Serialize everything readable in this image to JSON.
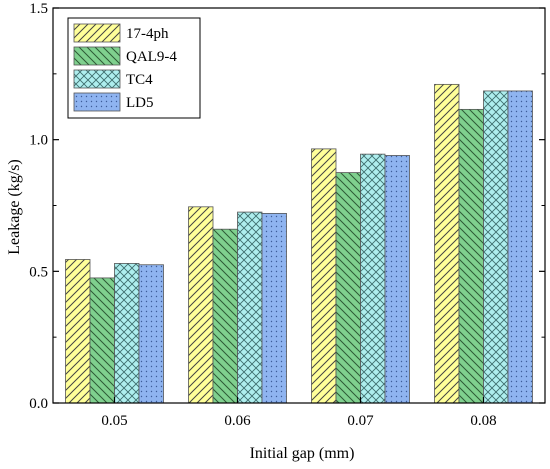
{
  "chart_data": {
    "type": "bar",
    "xlabel": "Initial gap (mm)",
    "ylabel": "Leakage (kg/s)",
    "categories": [
      "0.05",
      "0.06",
      "0.07",
      "0.08"
    ],
    "ylim": [
      0.0,
      1.5
    ],
    "yticks": [
      0.0,
      0.5,
      1.0,
      1.5
    ],
    "ytick_labels": [
      "0.0",
      "0.5",
      "1.0",
      "1.5"
    ],
    "legend_position": "top-left",
    "grid": false,
    "series": [
      {
        "name": "17-4ph",
        "values": [
          0.545,
          0.745,
          0.965,
          1.21
        ],
        "fill": "#FFFF99",
        "stroke": "#444444",
        "pattern": "diagonal-up"
      },
      {
        "name": "QAL9-4",
        "values": [
          0.475,
          0.66,
          0.875,
          1.115
        ],
        "fill": "#7FD08E",
        "stroke": "#2d5a35",
        "pattern": "diagonal-down"
      },
      {
        "name": "TC4",
        "values": [
          0.53,
          0.725,
          0.945,
          1.185
        ],
        "fill": "#AEEEEE",
        "stroke": "#3e6e6e",
        "pattern": "cross-hatch"
      },
      {
        "name": "LD5",
        "values": [
          0.525,
          0.72,
          0.94,
          1.185
        ],
        "fill": "#8FB4F0",
        "stroke": "#3d5c99",
        "pattern": "dots"
      }
    ]
  }
}
